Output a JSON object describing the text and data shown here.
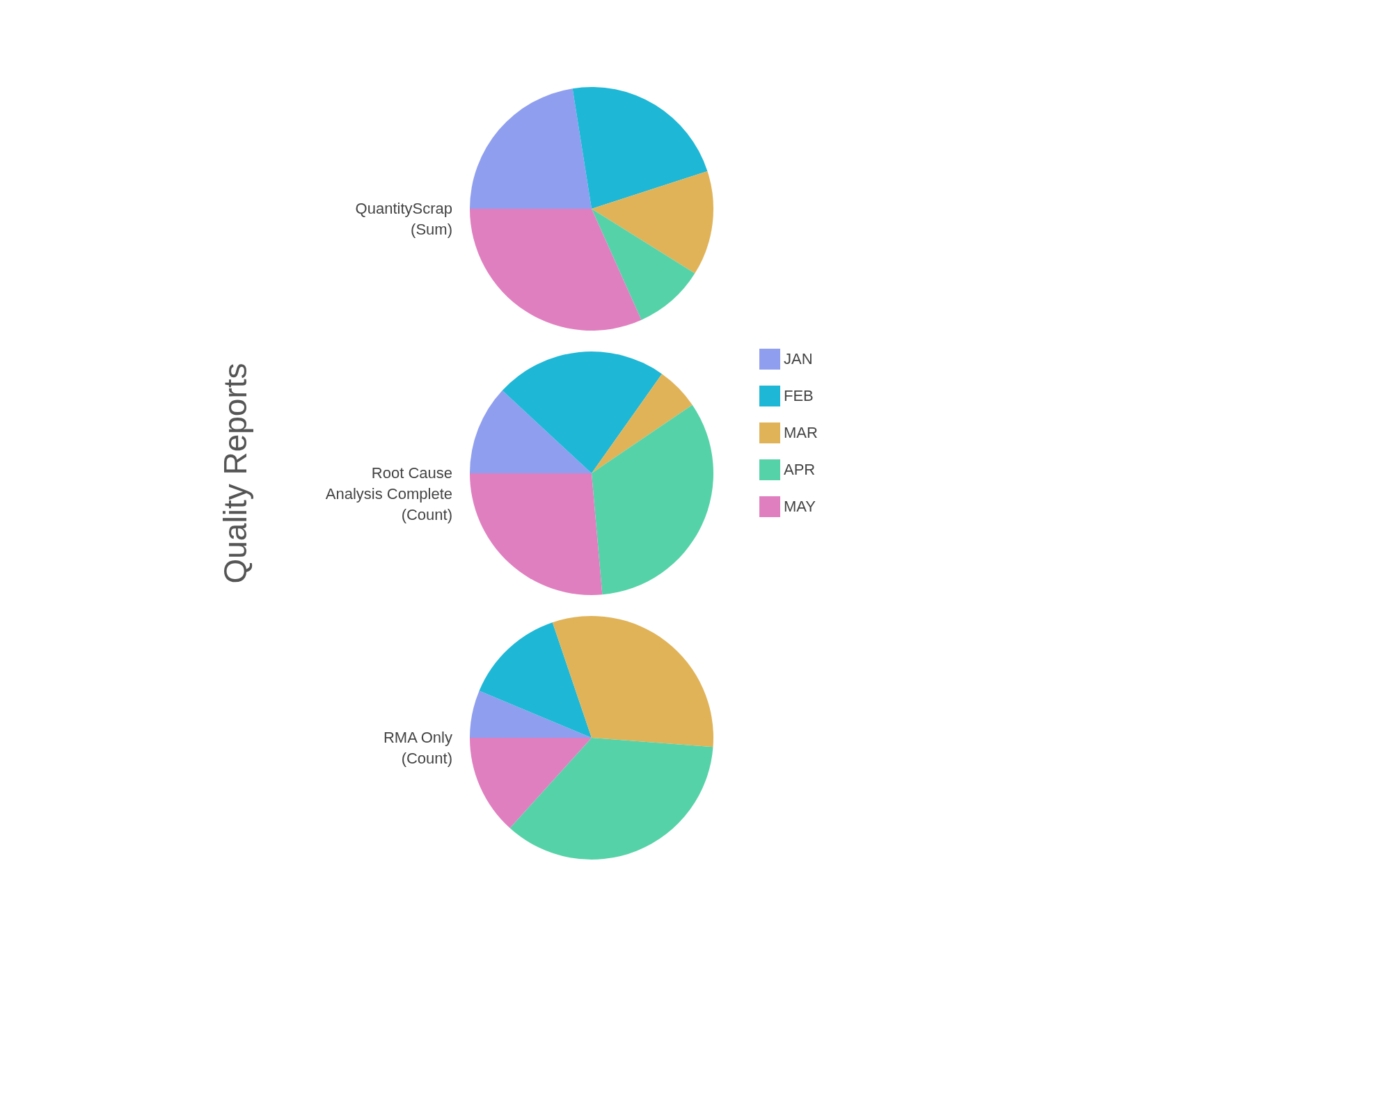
{
  "chart_data": [
    {
      "type": "pie",
      "title": "QuantityScrap\n(Sum)",
      "categories": [
        null,
        null,
        null,
        null,
        null
      ],
      "values": [
        22.5,
        22.5,
        13.9,
        9.4,
        31.7
      ],
      "colors": [
        "#8f9eee",
        "#1fb7d6",
        "#e0b358",
        "#55d2a8",
        "#e07fbf"
      ]
    },
    {
      "type": "pie",
      "title": "Root Cause\nAnalysis Complete\n(Count)",
      "ylabel": "Quality Reports",
      "categories": [
        "JAN",
        "FEB",
        "MAR",
        "APR",
        "MAY"
      ],
      "values": [
        11.9,
        22.9,
        5.7,
        33.1,
        26.4
      ],
      "colors": [
        "#8f9eee",
        "#1fb7d6",
        "#e0b358",
        "#55d2a8",
        "#e07fbf"
      ],
      "legend": "right"
    },
    {
      "type": "pie",
      "title": "RMA Only\n(Count)",
      "categories": [
        null,
        null,
        null,
        null,
        null
      ],
      "values": [
        6.3,
        13.5,
        31.4,
        35.5,
        13.3
      ],
      "colors": [
        "#8f9eee",
        "#1fb7d6",
        "#e0b358",
        "#55d2a8",
        "#e07fbf"
      ]
    }
  ]
}
